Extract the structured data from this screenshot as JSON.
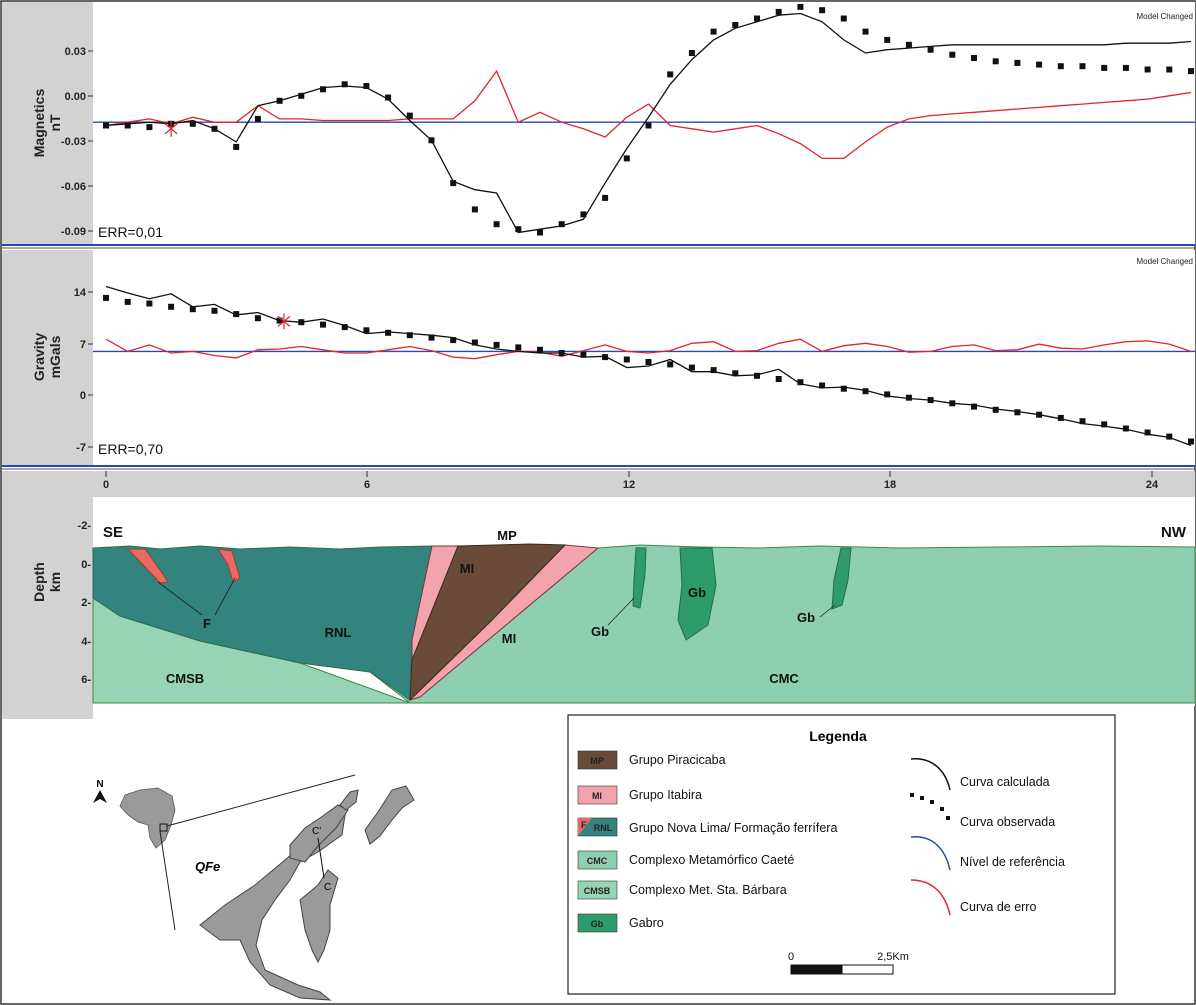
{
  "model_changed": "Model Changed",
  "colors": {
    "panel_gray": "#d2d2d2",
    "reference": "#2b47b5",
    "error_curve": "#e0252b",
    "calculated": "#111111",
    "observed": "#111111",
    "MP": "#6a4a38",
    "MI": "#f3a3ac",
    "RNL": "#33837f",
    "F": "#e86a63",
    "CMC": "#8fcfb1",
    "CMSB": "#97d4b6",
    "Gb": "#2e9c6a"
  },
  "chart_data": [
    {
      "type": "line",
      "panel": "magnetics",
      "ylabel_1": "Magnetics",
      "ylabel_2": "nT",
      "yticks": [
        "0.03",
        "0.00",
        "-0.03",
        "-0.06",
        "-0.09"
      ],
      "ylim": [
        -0.095,
        0.052
      ],
      "xlim": [
        -0.25,
        25
      ],
      "annotation": "ERR=0,01",
      "reference_level": -0.021,
      "observed": {
        "x": [
          0,
          0.5,
          1,
          1.5,
          2,
          2.5,
          3,
          3.5,
          4,
          4.5,
          5,
          5.5,
          6,
          6.5,
          7,
          7.5,
          8,
          8.5,
          9,
          9.5,
          10,
          10.5,
          11,
          11.5,
          12,
          12.5,
          13,
          13.5,
          14,
          14.5,
          15,
          15.5,
          16,
          16.5,
          17,
          17.5,
          18,
          18.5,
          19,
          19.5,
          20,
          20.5,
          21,
          21.5,
          22,
          22.5,
          23,
          23.5,
          24,
          24.5,
          25
        ],
        "y": [
          -0.023,
          -0.023,
          -0.024,
          -0.022,
          -0.022,
          -0.025,
          -0.036,
          -0.019,
          -0.008,
          -0.005,
          -0.001,
          0.002,
          0.001,
          -0.006,
          -0.017,
          -0.032,
          -0.058,
          -0.074,
          -0.083,
          -0.086,
          -0.088,
          -0.083,
          -0.077,
          -0.067,
          -0.043,
          -0.023,
          0.008,
          0.021,
          0.034,
          0.038,
          0.042,
          0.046,
          0.049,
          0.047,
          0.042,
          0.034,
          0.029,
          0.026,
          0.023,
          0.02,
          0.018,
          0.016,
          0.015,
          0.014,
          0.013,
          0.013,
          0.012,
          0.012,
          0.011,
          0.011,
          0.01
        ]
      },
      "calculated": {
        "x": [
          0,
          0.5,
          1,
          1.5,
          2,
          2.5,
          3,
          3.5,
          4,
          4.5,
          5,
          5.5,
          6,
          6.5,
          7,
          7.5,
          8,
          8.5,
          9,
          9.5,
          10,
          10.5,
          11,
          11.5,
          12,
          12.5,
          13,
          13.5,
          14,
          14.5,
          15,
          15.5,
          16,
          16.5,
          17,
          17.5,
          18,
          18.5,
          19,
          19.5,
          20,
          20.5,
          21,
          21.5,
          22,
          22.5,
          23,
          23.5,
          24,
          24.5,
          25
        ],
        "y": [
          -0.023,
          -0.022,
          -0.021,
          -0.022,
          -0.02,
          -0.025,
          -0.033,
          -0.011,
          -0.008,
          -0.004,
          0.0,
          0.001,
          0.0,
          -0.007,
          -0.02,
          -0.032,
          -0.057,
          -0.062,
          -0.064,
          -0.088,
          -0.086,
          -0.084,
          -0.08,
          -0.058,
          -0.037,
          -0.018,
          0.002,
          0.017,
          0.029,
          0.036,
          0.04,
          0.044,
          0.045,
          0.04,
          0.029,
          0.021,
          0.023,
          0.024,
          0.025,
          0.026,
          0.026,
          0.026,
          0.026,
          0.026,
          0.026,
          0.026,
          0.026,
          0.027,
          0.027,
          0.027,
          0.028
        ]
      },
      "error": {
        "x": [
          0,
          0.5,
          1,
          1.5,
          2,
          2.5,
          3,
          3.5,
          4,
          4.5,
          5,
          5.5,
          6,
          6.5,
          7,
          7.5,
          8,
          8.5,
          9,
          9.5,
          10,
          10.5,
          11,
          11.5,
          12,
          12.5,
          13,
          13.5,
          14,
          14.5,
          15,
          15.5,
          16,
          16.5,
          17,
          17.5,
          18,
          18.5,
          19,
          19.5,
          20,
          20.5,
          21,
          21.5,
          22,
          22.5,
          23,
          23.5,
          24,
          24.5,
          25
        ],
        "y": [
          -0.023,
          -0.021,
          -0.019,
          -0.022,
          -0.018,
          -0.021,
          -0.021,
          -0.011,
          -0.019,
          -0.019,
          -0.02,
          -0.02,
          -0.02,
          -0.02,
          -0.019,
          -0.019,
          -0.019,
          -0.008,
          0.01,
          -0.021,
          -0.015,
          -0.021,
          -0.025,
          -0.03,
          -0.018,
          -0.01,
          -0.023,
          -0.025,
          -0.027,
          -0.025,
          -0.023,
          -0.028,
          -0.034,
          -0.043,
          -0.043,
          -0.033,
          -0.024,
          -0.019,
          -0.017,
          -0.016,
          -0.015,
          -0.014,
          -0.013,
          -0.012,
          -0.011,
          -0.01,
          -0.009,
          -0.008,
          -0.007,
          -0.005,
          -0.003
        ]
      },
      "marker": {
        "x": 1.5,
        "y": -0.025
      }
    },
    {
      "type": "line",
      "panel": "gravity",
      "ylabel_1": "Gravity",
      "ylabel_2": "mGals",
      "yticks": [
        "14",
        "7",
        "0",
        "-7"
      ],
      "ylim": [
        -9,
        17.5
      ],
      "xlim": [
        -0.25,
        25
      ],
      "annotation": "ERR=0,70",
      "reference_level": 5,
      "observed": {
        "x": [
          0,
          0.5,
          1,
          1.5,
          2,
          2.5,
          3,
          3.5,
          4,
          4.5,
          5,
          5.5,
          6,
          6.5,
          7,
          7.5,
          8,
          8.5,
          9,
          9.5,
          10,
          10.5,
          11,
          11.5,
          12,
          12.5,
          13,
          13.5,
          14,
          14.5,
          15,
          15.5,
          16,
          16.5,
          17,
          17.5,
          18,
          18.5,
          19,
          19.5,
          20,
          20.5,
          21,
          21.5,
          22,
          22.5,
          23,
          23.5,
          24,
          24.5,
          25
        ],
        "y": [
          11.6,
          11.1,
          10.9,
          10.5,
          10.2,
          10.0,
          9.6,
          9.1,
          8.8,
          8.6,
          8.3,
          8.0,
          7.6,
          7.3,
          7.0,
          6.7,
          6.4,
          6.1,
          5.8,
          5.5,
          5.2,
          4.8,
          4.6,
          4.3,
          4.0,
          3.7,
          3.4,
          3.0,
          2.7,
          2.3,
          2.0,
          1.6,
          1.2,
          0.8,
          0.4,
          0.1,
          -0.3,
          -0.7,
          -1.0,
          -1.4,
          -1.8,
          -2.2,
          -2.5,
          -2.8,
          -3.2,
          -3.6,
          -4.0,
          -4.5,
          -5.0,
          -5.5,
          -6.1
        ]
      },
      "calculated": {
        "x": [
          0,
          0.5,
          1,
          1.5,
          2,
          2.5,
          3,
          3.5,
          4,
          4.5,
          5,
          5.5,
          6,
          6.5,
          7,
          7.5,
          8,
          8.5,
          9,
          9.5,
          10,
          10.5,
          11,
          11.5,
          12,
          12.5,
          13,
          13.5,
          14,
          14.5,
          15,
          15.5,
          16,
          16.5,
          17,
          17.5,
          18,
          18.5,
          19,
          19.5,
          20,
          20.5,
          21,
          21.5,
          22,
          22.5,
          23,
          23.5,
          24,
          24.5,
          25
        ],
        "y": [
          13.0,
          12.2,
          11.5,
          12.1,
          10.5,
          10.8,
          9.5,
          9.8,
          8.8,
          8.6,
          9.0,
          8.2,
          7.2,
          7.4,
          7.2,
          7.0,
          6.7,
          5.8,
          5.3,
          5.0,
          4.8,
          4.8,
          4.3,
          4.4,
          3.0,
          3.2,
          4.0,
          2.5,
          2.5,
          2.0,
          2.1,
          2.8,
          1.0,
          0.5,
          0.6,
          0.2,
          -0.5,
          -0.8,
          -1.0,
          -1.4,
          -1.6,
          -2.1,
          -2.4,
          -2.8,
          -3.3,
          -3.9,
          -4.2,
          -4.6,
          -5.2,
          -5.6,
          -6.6
        ]
      },
      "error": {
        "x": [
          0,
          0.5,
          1,
          1.5,
          2,
          2.5,
          3,
          3.5,
          4,
          4.5,
          5,
          5.5,
          6,
          6.5,
          7,
          7.5,
          8,
          8.5,
          9,
          9.5,
          10,
          10.5,
          11,
          11.5,
          12,
          12.5,
          13,
          13.5,
          14,
          14.5,
          15,
          15.5,
          16,
          16.5,
          17,
          17.5,
          18,
          18.5,
          19,
          19.5,
          20,
          20.5,
          21,
          21.5,
          22,
          22.5,
          23,
          23.5,
          24,
          24.5,
          25
        ],
        "y": [
          6.5,
          5.0,
          5.8,
          4.8,
          5.0,
          4.5,
          4.2,
          5.2,
          5.3,
          5.6,
          5.2,
          4.8,
          4.8,
          5.2,
          5.6,
          5.1,
          4.3,
          4.1,
          4.6,
          5.0,
          4.9,
          4.4,
          5.1,
          5.8,
          5.0,
          4.8,
          5.1,
          6.0,
          6.2,
          5.0,
          5.1,
          6.0,
          6.5,
          5.0,
          5.7,
          6.0,
          5.6,
          4.9,
          5.0,
          5.6,
          5.8,
          5.1,
          5.2,
          5.9,
          5.4,
          5.3,
          5.8,
          6.2,
          6.3,
          5.9,
          5.0
        ]
      },
      "marker": {
        "x": 4.1,
        "y": 8.7
      }
    },
    {
      "type": "area",
      "panel": "depth",
      "ylabel_1": "Depth",
      "ylabel_2": "km",
      "xticks": [
        "0",
        "6",
        "12",
        "18",
        "24"
      ],
      "yticks": [
        "-2-",
        "0-",
        "2-",
        "4-",
        "6-"
      ],
      "xlim": [
        -0.25,
        25
      ],
      "ylim": [
        -3,
        6.3
      ],
      "profile_start": "SE",
      "profile_end": "NW",
      "units": [
        {
          "code": "MP",
          "label": "MP"
        },
        {
          "code": "MI",
          "label": "MI"
        },
        {
          "code": "RNL",
          "label": "RNL"
        },
        {
          "code": "F",
          "label": "F"
        },
        {
          "code": "CMSB",
          "label": "CMSB"
        },
        {
          "code": "CMC",
          "label": "CMC"
        },
        {
          "code": "Gb",
          "label": "Gb"
        }
      ]
    }
  ],
  "legend": {
    "title": "Legenda",
    "units": [
      {
        "code": "MP",
        "label": "Grupo Piracicaba"
      },
      {
        "code": "MI",
        "label": "Grupo Itabira"
      },
      {
        "code": "F",
        "code2": "RNL",
        "label": "Grupo Nova Lima/ Formação ferrífera"
      },
      {
        "code": "CMC",
        "label": "Complexo Metamórfico Caeté"
      },
      {
        "code": "CMSB",
        "label": "Complexo Met. Sta. Bárbara"
      },
      {
        "code": "Gb",
        "label": "Gabro"
      }
    ],
    "curves": [
      {
        "label": "Curva calculada"
      },
      {
        "label": "Curva observada"
      },
      {
        "label": "Nível de referência"
      },
      {
        "label": "Curva de erro"
      }
    ],
    "scale": {
      "start": "0",
      "end": "2,5Km"
    }
  },
  "location_map": {
    "north": "N",
    "region": "QFe",
    "section_start": "C",
    "section_end": "C'"
  }
}
